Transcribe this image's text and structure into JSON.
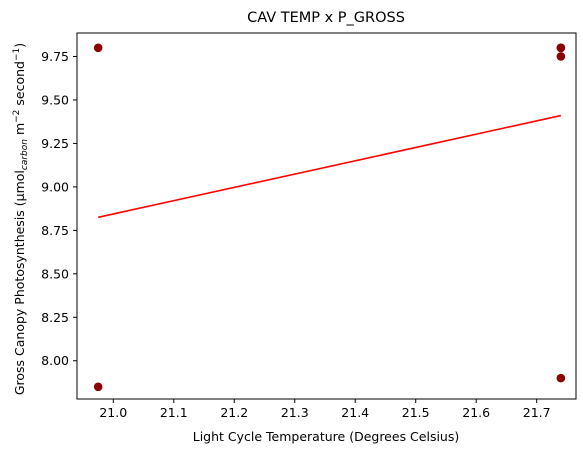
{
  "chart_data": {
    "type": "scatter",
    "title": "CAV TEMP x P_GROSS",
    "xlabel": "Light Cycle Temperature (Degrees Celsius)",
    "ylabel": {
      "prefix": "Gross Canopy Photosynthesis (μmol",
      "subscript": "carbon",
      "middle": " m",
      "sup1": "−2",
      "middle2": " second",
      "sup2": "−1",
      "suffix": ")"
    },
    "xlim": [
      20.94,
      21.765
    ],
    "ylim": [
      7.78,
      9.885
    ],
    "xticks": [
      {
        "value": 21.0,
        "label": "21.0"
      },
      {
        "value": 21.1,
        "label": "21.1"
      },
      {
        "value": 21.2,
        "label": "21.2"
      },
      {
        "value": 21.3,
        "label": "21.3"
      },
      {
        "value": 21.4,
        "label": "21.4"
      },
      {
        "value": 21.5,
        "label": "21.5"
      },
      {
        "value": 21.6,
        "label": "21.6"
      },
      {
        "value": 21.7,
        "label": "21.7"
      }
    ],
    "yticks": [
      {
        "value": 8.0,
        "label": "8.00"
      },
      {
        "value": 8.25,
        "label": "8.25"
      },
      {
        "value": 8.5,
        "label": "8.50"
      },
      {
        "value": 8.75,
        "label": "8.75"
      },
      {
        "value": 9.0,
        "label": "9.00"
      },
      {
        "value": 9.25,
        "label": "9.25"
      },
      {
        "value": 9.5,
        "label": "9.50"
      },
      {
        "value": 9.75,
        "label": "9.75"
      }
    ],
    "series": [
      {
        "kind": "scatter",
        "color": "#8b0000",
        "points": [
          {
            "x": 20.975,
            "y": 9.8
          },
          {
            "x": 20.975,
            "y": 7.85
          },
          {
            "x": 21.74,
            "y": 9.8
          },
          {
            "x": 21.74,
            "y": 9.8
          },
          {
            "x": 21.74,
            "y": 9.75
          },
          {
            "x": 21.74,
            "y": 7.9
          }
        ]
      },
      {
        "kind": "trendline",
        "color": "#ff0000",
        "points": [
          {
            "x": 20.975,
            "y": 8.825
          },
          {
            "x": 21.74,
            "y": 9.41
          }
        ]
      }
    ],
    "grid": false,
    "legend": "none"
  }
}
